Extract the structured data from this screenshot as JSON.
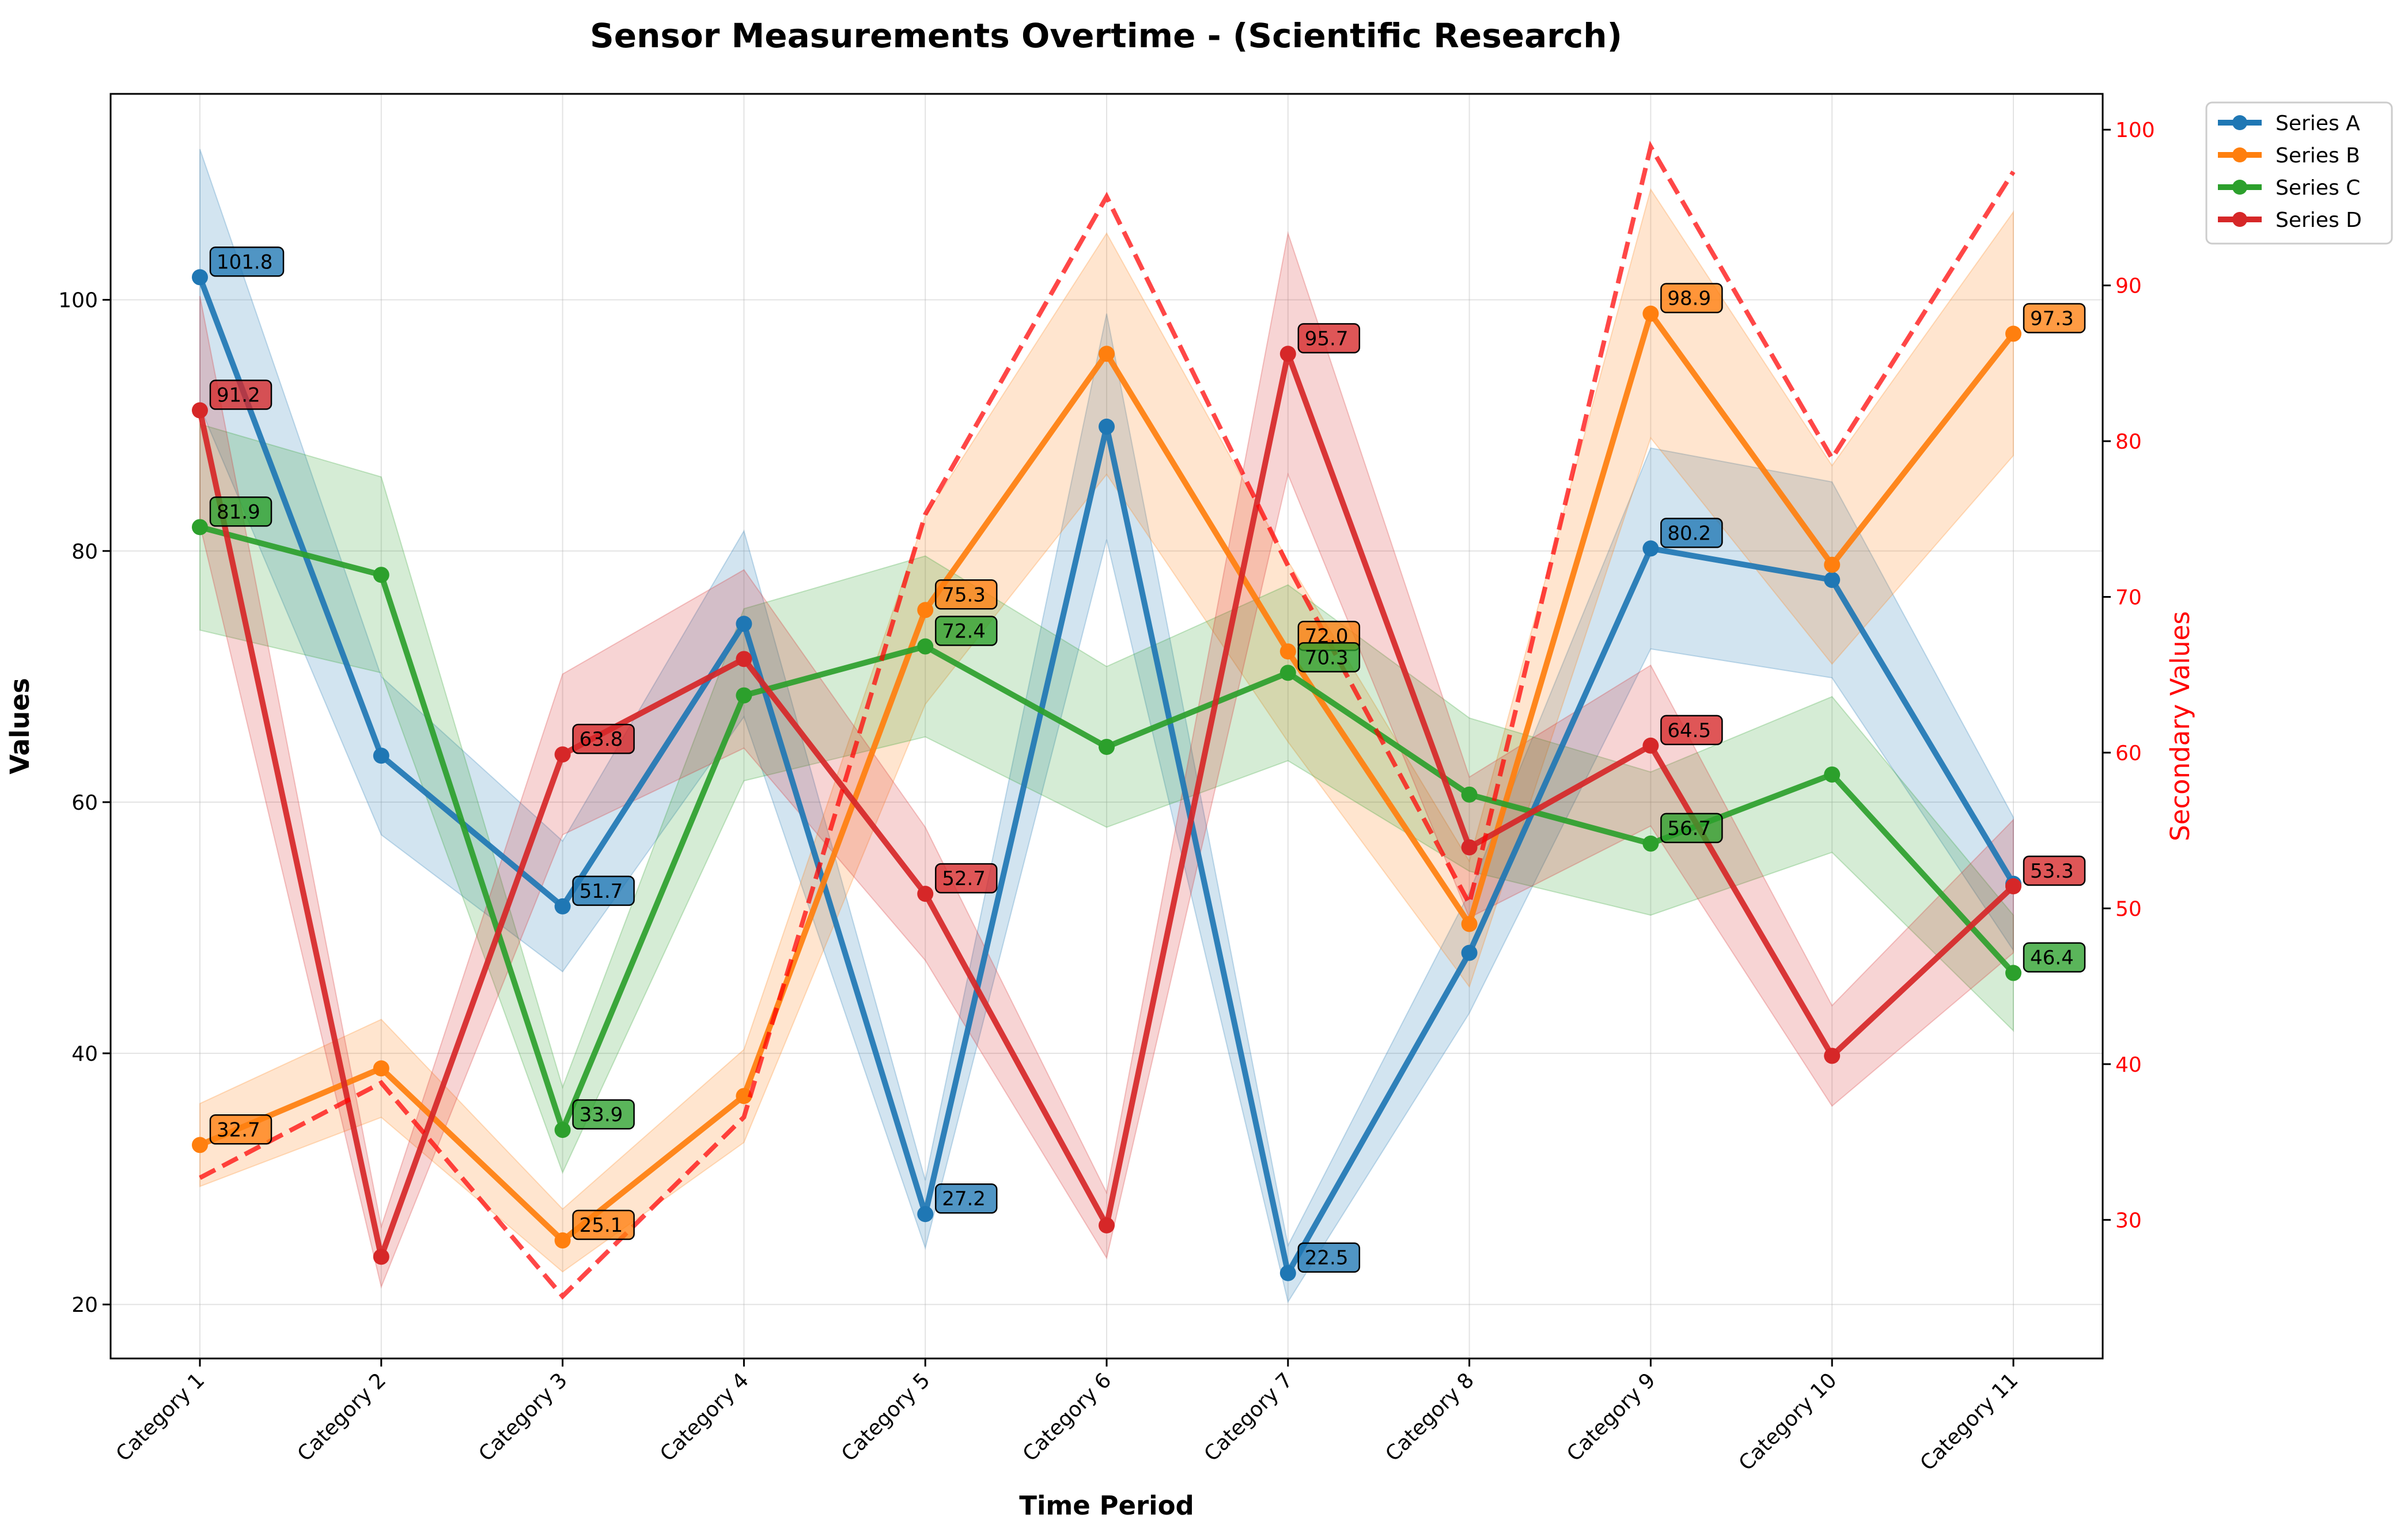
{
  "chart_data": {
    "type": "line",
    "title": "Sensor Measurements Overtime - (Scientific Research)",
    "xlabel": "Time Period",
    "ylabel": "Values",
    "ylabel_right": "Secondary Values",
    "categories": [
      "Category 1",
      "Category 2",
      "Category 3",
      "Category 4",
      "Category 5",
      "Category 6",
      "Category 7",
      "Category 8",
      "Category 9",
      "Category 10",
      "Category 11"
    ],
    "ylim": [
      15.7,
      116.4
    ],
    "yticks": [
      20,
      40,
      60,
      80,
      100
    ],
    "y2lim": [
      21.1,
      102.3
    ],
    "y2ticks": [
      30,
      40,
      50,
      60,
      70,
      80,
      90,
      100
    ],
    "grid": true,
    "legend_position": "outside-top-right",
    "series": [
      {
        "name": "Series A",
        "color": "#1f77b4",
        "values": [
          101.8,
          63.7,
          51.7,
          74.2,
          27.2,
          89.9,
          22.5,
          48.0,
          80.2,
          77.7,
          53.5
        ],
        "lower": [
          91.5,
          57.4,
          46.5,
          66.8,
          24.5,
          80.9,
          20.2,
          43.2,
          72.2,
          69.9,
          48.2
        ],
        "upper": [
          112.0,
          70.0,
          56.9,
          81.6,
          29.9,
          98.9,
          24.7,
          52.8,
          88.2,
          85.5,
          58.8
        ],
        "labels": [
          "101.8",
          "",
          "51.7",
          "",
          "27.2",
          "",
          "22.5",
          "",
          "80.2",
          "",
          ""
        ],
        "label_points": [
          0,
          2,
          4,
          6,
          8
        ]
      },
      {
        "name": "Series B",
        "color": "#ff7f0e",
        "values": [
          32.7,
          38.8,
          25.1,
          36.6,
          75.3,
          95.7,
          72.0,
          50.3,
          98.9,
          78.9,
          97.3
        ],
        "lower": [
          29.4,
          34.9,
          22.6,
          32.9,
          67.8,
          86.1,
          64.8,
          45.3,
          89.0,
          71.0,
          87.6
        ],
        "upper": [
          36.0,
          42.7,
          27.6,
          40.3,
          82.8,
          105.3,
          79.2,
          55.3,
          108.8,
          86.8,
          107.0
        ],
        "labels": [
          "32.7",
          "",
          "25.1",
          "",
          "75.3",
          "",
          "72.0",
          "",
          "98.9",
          "",
          "97.3"
        ],
        "label_points": [
          0,
          2,
          4,
          6,
          8,
          10
        ]
      },
      {
        "name": "Series C",
        "color": "#2ca02c",
        "values": [
          81.9,
          78.1,
          33.9,
          68.5,
          72.4,
          64.4,
          70.3,
          60.6,
          56.7,
          62.2,
          46.4
        ],
        "lower": [
          73.7,
          70.3,
          30.5,
          61.7,
          65.2,
          58.0,
          63.3,
          54.5,
          51.0,
          56.0,
          41.8
        ],
        "upper": [
          90.1,
          85.9,
          37.3,
          75.4,
          79.6,
          70.8,
          77.3,
          66.7,
          62.4,
          68.4,
          51.0
        ],
        "labels": [
          "81.9",
          "",
          "33.9",
          "",
          "72.4",
          "",
          "70.3",
          "",
          "56.7",
          "",
          "46.4"
        ],
        "label_points": [
          0,
          2,
          4,
          6,
          8,
          10
        ]
      },
      {
        "name": "Series D",
        "color": "#d62728",
        "values": [
          91.2,
          23.8,
          63.8,
          71.4,
          52.7,
          26.3,
          95.7,
          56.4,
          64.5,
          39.8,
          53.3
        ],
        "lower": [
          82.1,
          21.4,
          57.4,
          64.3,
          47.4,
          23.7,
          86.1,
          50.8,
          58.1,
          35.8,
          48.0
        ],
        "upper": [
          100.3,
          26.2,
          70.2,
          78.5,
          58.0,
          28.9,
          105.3,
          62.0,
          70.9,
          43.8,
          58.6
        ],
        "labels": [
          "91.2",
          "",
          "63.8",
          "",
          "52.7",
          "",
          "95.7",
          "",
          "64.5",
          "",
          "53.3"
        ],
        "label_points": [
          0,
          2,
          4,
          6,
          8,
          10
        ]
      }
    ],
    "secondary_series": {
      "color": "#ff0000",
      "style": "dashed",
      "axis": "right",
      "values": [
        32.7,
        38.8,
        25.1,
        36.6,
        75.3,
        95.7,
        72.0,
        50.3,
        98.9,
        78.9,
        97.3
      ]
    }
  }
}
